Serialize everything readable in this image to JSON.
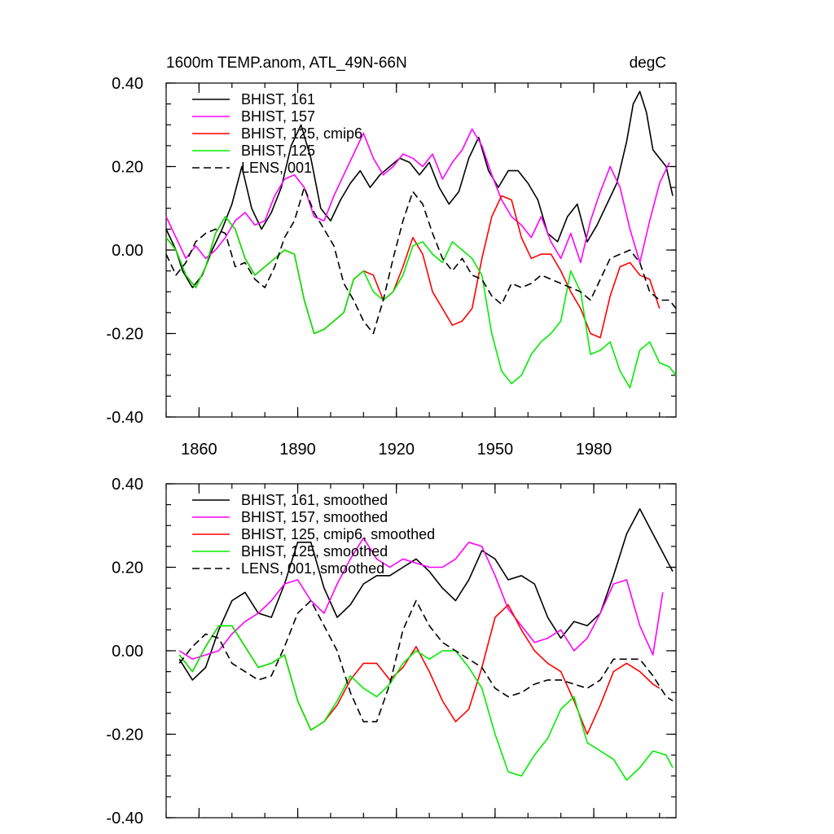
{
  "chart_data": [
    {
      "type": "line",
      "title": "1600m TEMP.anom, ATL_49N-66N",
      "units": "degC",
      "xlim": [
        1850,
        2005
      ],
      "ylim": [
        -0.4,
        0.4
      ],
      "xticks": [
        1860,
        1890,
        1920,
        1950,
        1980
      ],
      "xtick_labels": [
        "1860",
        "1890",
        "1920",
        "1950",
        "1980"
      ],
      "yticks": [
        -0.4,
        -0.2,
        0.0,
        0.2,
        0.4
      ],
      "ytick_labels": [
        "-0.40",
        "-0.20",
        "0.00",
        "0.20",
        "0.40"
      ],
      "legend": "top-left",
      "series": [
        {
          "name": "BHIST, 161",
          "color": "#000000",
          "dash": false,
          "x": [
            1850,
            1853,
            1855,
            1858,
            1861,
            1864,
            1867,
            1870,
            1873,
            1876,
            1879,
            1882,
            1885,
            1888,
            1891,
            1894,
            1897,
            1900,
            1903,
            1906,
            1909,
            1912,
            1915,
            1918,
            1921,
            1924,
            1927,
            1930,
            1933,
            1936,
            1939,
            1942,
            1945,
            1948,
            1951,
            1954,
            1957,
            1960,
            1963,
            1966,
            1969,
            1972,
            1975,
            1978,
            1981,
            1984,
            1987,
            1990,
            1992,
            1994,
            1996,
            1998,
            2000,
            2002,
            2004
          ],
          "y": [
            0.05,
            0.0,
            -0.05,
            -0.09,
            -0.06,
            0.0,
            0.05,
            0.11,
            0.2,
            0.1,
            0.05,
            0.09,
            0.15,
            0.25,
            0.3,
            0.22,
            0.1,
            0.07,
            0.12,
            0.16,
            0.19,
            0.15,
            0.18,
            0.2,
            0.22,
            0.21,
            0.18,
            0.21,
            0.15,
            0.11,
            0.14,
            0.22,
            0.27,
            0.19,
            0.15,
            0.19,
            0.19,
            0.16,
            0.12,
            0.04,
            0.02,
            0.08,
            0.11,
            0.02,
            0.06,
            0.11,
            0.16,
            0.26,
            0.35,
            0.38,
            0.33,
            0.24,
            0.22,
            0.2,
            0.13
          ]
        },
        {
          "name": "BHIST, 157",
          "color": "#ff00ff",
          "dash": false,
          "x": [
            1850,
            1853,
            1856,
            1859,
            1862,
            1865,
            1868,
            1871,
            1874,
            1877,
            1880,
            1883,
            1886,
            1889,
            1892,
            1895,
            1898,
            1901,
            1904,
            1907,
            1910,
            1913,
            1916,
            1919,
            1922,
            1925,
            1928,
            1931,
            1934,
            1937,
            1940,
            1943,
            1946,
            1949,
            1952,
            1955,
            1958,
            1961,
            1964,
            1967,
            1970,
            1973,
            1976,
            1979,
            1982,
            1985,
            1988,
            1991,
            1994,
            1997,
            2000,
            2003
          ],
          "y": [
            0.08,
            0.03,
            -0.02,
            0.01,
            -0.02,
            0.0,
            0.03,
            0.07,
            0.09,
            0.06,
            0.07,
            0.13,
            0.17,
            0.18,
            0.15,
            0.08,
            0.07,
            0.13,
            0.18,
            0.23,
            0.28,
            0.22,
            0.18,
            0.2,
            0.23,
            0.22,
            0.2,
            0.23,
            0.17,
            0.21,
            0.24,
            0.29,
            0.25,
            0.18,
            0.12,
            0.08,
            0.06,
            0.03,
            0.08,
            0.02,
            -0.02,
            0.04,
            -0.03,
            0.07,
            0.14,
            0.2,
            0.15,
            0.05,
            -0.03,
            0.07,
            0.16,
            0.21
          ]
        },
        {
          "name": "BHIST, 125, cmip6",
          "color": "#ff0000",
          "dash": false,
          "x": [
            1850,
            1853,
            1856,
            1859,
            1862,
            1865,
            1868,
            1871,
            1874,
            1877,
            1880,
            1883,
            1886,
            1889,
            1892,
            1895,
            1898,
            1901,
            1904,
            1907,
            1910,
            1913,
            1916,
            1919,
            1922,
            1925,
            1928,
            1931,
            1934,
            1937,
            1940,
            1943,
            1946,
            1949,
            1952,
            1955,
            1958,
            1961,
            1964,
            1967,
            1970,
            1973,
            1976,
            1979,
            1982,
            1985,
            1988,
            1991,
            1994,
            1997,
            2000
          ],
          "y": [
            0.03,
            0.0,
            -0.06,
            -0.09,
            -0.04,
            0.04,
            0.08,
            0.05,
            -0.02,
            -0.06,
            -0.04,
            -0.02,
            0.0,
            -0.01,
            -0.12,
            -0.2,
            -0.19,
            -0.17,
            -0.15,
            -0.07,
            -0.05,
            -0.06,
            -0.12,
            -0.1,
            -0.04,
            0.03,
            -0.01,
            -0.1,
            -0.14,
            -0.18,
            -0.17,
            -0.14,
            -0.02,
            0.08,
            0.13,
            0.12,
            0.03,
            -0.02,
            -0.01,
            -0.01,
            -0.05,
            -0.1,
            -0.14,
            -0.2,
            -0.21,
            -0.11,
            -0.04,
            -0.03,
            -0.06,
            -0.07,
            -0.14
          ]
        },
        {
          "name": "BHIST, 125",
          "color": "#00ee00",
          "dash": false,
          "x": [
            1850,
            1853,
            1856,
            1859,
            1862,
            1865,
            1868,
            1871,
            1874,
            1877,
            1880,
            1883,
            1886,
            1889,
            1892,
            1895,
            1898,
            1901,
            1904,
            1907,
            1910,
            1913,
            1916,
            1919,
            1922,
            1925,
            1928,
            1931,
            1934,
            1937,
            1940,
            1943,
            1946,
            1949,
            1952,
            1955,
            1958,
            1961,
            1964,
            1967,
            1970,
            1973,
            1976,
            1979,
            1982,
            1985,
            1988,
            1991,
            1994,
            1997,
            2000,
            2003,
            2005
          ],
          "y": [
            0.03,
            0.0,
            -0.06,
            -0.09,
            -0.04,
            0.04,
            0.08,
            0.05,
            -0.02,
            -0.06,
            -0.04,
            -0.02,
            0.0,
            -0.01,
            -0.12,
            -0.2,
            -0.19,
            -0.17,
            -0.15,
            -0.07,
            -0.05,
            -0.1,
            -0.12,
            -0.1,
            -0.06,
            0.01,
            0.02,
            -0.01,
            -0.03,
            0.02,
            0.0,
            -0.02,
            -0.06,
            -0.2,
            -0.29,
            -0.32,
            -0.3,
            -0.25,
            -0.22,
            -0.2,
            -0.17,
            -0.05,
            -0.1,
            -0.25,
            -0.24,
            -0.22,
            -0.29,
            -0.33,
            -0.24,
            -0.22,
            -0.27,
            -0.28,
            -0.3
          ]
        },
        {
          "name": "LENS, 001",
          "color": "#000000",
          "dash": true,
          "x": [
            1850,
            1853,
            1856,
            1859,
            1862,
            1865,
            1868,
            1871,
            1874,
            1877,
            1880,
            1883,
            1886,
            1889,
            1892,
            1895,
            1898,
            1901,
            1904,
            1907,
            1910,
            1913,
            1916,
            1919,
            1922,
            1925,
            1928,
            1931,
            1934,
            1937,
            1940,
            1943,
            1946,
            1949,
            1952,
            1955,
            1958,
            1961,
            1964,
            1967,
            1970,
            1973,
            1976,
            1979,
            1982,
            1985,
            1988,
            1991,
            1994,
            1997,
            2000,
            2003,
            2005
          ],
          "y": [
            -0.01,
            -0.06,
            -0.03,
            0.02,
            0.04,
            0.05,
            0.04,
            -0.04,
            -0.03,
            -0.07,
            -0.09,
            -0.04,
            0.03,
            0.07,
            0.15,
            0.09,
            0.05,
            0.01,
            -0.08,
            -0.12,
            -0.17,
            -0.2,
            -0.12,
            -0.02,
            0.07,
            0.14,
            0.11,
            0.04,
            -0.02,
            -0.05,
            -0.02,
            -0.06,
            -0.07,
            -0.11,
            -0.13,
            -0.08,
            -0.09,
            -0.08,
            -0.06,
            -0.07,
            -0.08,
            -0.09,
            -0.1,
            -0.12,
            -0.07,
            -0.02,
            -0.01,
            0.0,
            -0.03,
            -0.1,
            -0.12,
            -0.12,
            -0.14
          ]
        }
      ]
    },
    {
      "type": "line",
      "xlim": [
        1850,
        2005
      ],
      "ylim": [
        -0.4,
        0.4
      ],
      "yticks": [
        -0.4,
        -0.2,
        0.0,
        0.2,
        0.4
      ],
      "ytick_labels": [
        "-0.40",
        "-0.20",
        "0.00",
        "0.20",
        "0.40"
      ],
      "legend": "top-left",
      "series": [
        {
          "name": "BHIST, 161, smoothed",
          "color": "#000000",
          "dash": false,
          "x": [
            1854,
            1858,
            1862,
            1866,
            1870,
            1874,
            1878,
            1882,
            1886,
            1890,
            1894,
            1898,
            1902,
            1906,
            1910,
            1914,
            1918,
            1922,
            1926,
            1930,
            1934,
            1938,
            1942,
            1946,
            1950,
            1954,
            1958,
            1962,
            1966,
            1970,
            1974,
            1978,
            1982,
            1986,
            1990,
            1994,
            1998,
            2002,
            2004
          ],
          "y": [
            -0.02,
            -0.07,
            -0.04,
            0.05,
            0.12,
            0.14,
            0.09,
            0.08,
            0.16,
            0.26,
            0.26,
            0.15,
            0.08,
            0.11,
            0.16,
            0.18,
            0.18,
            0.2,
            0.22,
            0.19,
            0.15,
            0.12,
            0.17,
            0.24,
            0.22,
            0.17,
            0.18,
            0.16,
            0.08,
            0.03,
            0.07,
            0.06,
            0.09,
            0.18,
            0.28,
            0.34,
            0.28,
            0.22,
            0.19
          ]
        },
        {
          "name": "BHIST, 157, smoothed",
          "color": "#ff00ff",
          "dash": false,
          "x": [
            1854,
            1858,
            1862,
            1866,
            1870,
            1874,
            1878,
            1882,
            1886,
            1890,
            1894,
            1898,
            1902,
            1906,
            1910,
            1914,
            1918,
            1922,
            1926,
            1930,
            1934,
            1938,
            1942,
            1946,
            1950,
            1954,
            1958,
            1962,
            1966,
            1970,
            1974,
            1978,
            1982,
            1986,
            1990,
            1994,
            1998,
            2001
          ],
          "y": [
            0.0,
            -0.02,
            -0.01,
            0.0,
            0.04,
            0.07,
            0.09,
            0.12,
            0.16,
            0.17,
            0.12,
            0.09,
            0.16,
            0.22,
            0.27,
            0.22,
            0.2,
            0.22,
            0.21,
            0.2,
            0.2,
            0.22,
            0.26,
            0.25,
            0.18,
            0.1,
            0.06,
            0.02,
            0.03,
            0.05,
            0.0,
            0.03,
            0.09,
            0.16,
            0.17,
            0.06,
            -0.01,
            0.14
          ]
        },
        {
          "name": "BHIST, 125, cmip6, smoothed",
          "color": "#ff0000",
          "dash": false,
          "x": [
            1854,
            1858,
            1862,
            1866,
            1870,
            1874,
            1878,
            1882,
            1886,
            1890,
            1894,
            1898,
            1902,
            1906,
            1910,
            1914,
            1918,
            1922,
            1926,
            1930,
            1934,
            1938,
            1942,
            1946,
            1950,
            1954,
            1958,
            1962,
            1966,
            1970,
            1974,
            1978,
            1982,
            1986,
            1990,
            1994,
            1998,
            2000
          ],
          "y": [
            -0.01,
            -0.05,
            0.01,
            0.06,
            0.06,
            0.01,
            -0.04,
            -0.03,
            -0.01,
            -0.12,
            -0.19,
            -0.17,
            -0.13,
            -0.07,
            -0.03,
            -0.03,
            -0.07,
            -0.04,
            0.01,
            -0.05,
            -0.12,
            -0.17,
            -0.14,
            -0.04,
            0.08,
            0.11,
            0.05,
            0.0,
            -0.03,
            -0.05,
            -0.12,
            -0.2,
            -0.13,
            -0.05,
            -0.03,
            -0.05,
            -0.08,
            -0.09
          ]
        },
        {
          "name": "BHIST, 125, smoothed",
          "color": "#00ee00",
          "dash": false,
          "x": [
            1854,
            1858,
            1862,
            1866,
            1870,
            1874,
            1878,
            1882,
            1886,
            1890,
            1894,
            1898,
            1902,
            1906,
            1910,
            1914,
            1918,
            1922,
            1926,
            1930,
            1934,
            1938,
            1942,
            1946,
            1950,
            1954,
            1958,
            1962,
            1966,
            1970,
            1974,
            1978,
            1982,
            1986,
            1990,
            1994,
            1998,
            2002,
            2004
          ],
          "y": [
            -0.01,
            -0.05,
            0.01,
            0.06,
            0.06,
            0.01,
            -0.04,
            -0.03,
            -0.01,
            -0.12,
            -0.19,
            -0.17,
            -0.12,
            -0.06,
            -0.09,
            -0.11,
            -0.08,
            -0.03,
            0.0,
            -0.02,
            0.0,
            0.0,
            -0.04,
            -0.09,
            -0.2,
            -0.29,
            -0.3,
            -0.25,
            -0.21,
            -0.14,
            -0.11,
            -0.22,
            -0.24,
            -0.26,
            -0.31,
            -0.28,
            -0.24,
            -0.25,
            -0.28
          ]
        },
        {
          "name": "LENS, 001, smoothed",
          "color": "#000000",
          "dash": true,
          "x": [
            1854,
            1858,
            1862,
            1866,
            1870,
            1874,
            1878,
            1882,
            1886,
            1890,
            1894,
            1898,
            1902,
            1906,
            1910,
            1914,
            1918,
            1922,
            1926,
            1930,
            1934,
            1938,
            1942,
            1946,
            1950,
            1954,
            1958,
            1962,
            1966,
            1970,
            1974,
            1978,
            1982,
            1986,
            1990,
            1994,
            1998,
            2002,
            2004
          ],
          "y": [
            -0.03,
            0.01,
            0.04,
            0.03,
            -0.03,
            -0.05,
            -0.07,
            -0.06,
            0.01,
            0.09,
            0.12,
            0.06,
            0.0,
            -0.1,
            -0.17,
            -0.17,
            -0.08,
            0.05,
            0.12,
            0.06,
            0.02,
            0.0,
            -0.02,
            -0.04,
            -0.09,
            -0.11,
            -0.1,
            -0.08,
            -0.07,
            -0.07,
            -0.08,
            -0.09,
            -0.07,
            -0.02,
            -0.02,
            -0.02,
            -0.06,
            -0.11,
            -0.12
          ]
        }
      ]
    }
  ]
}
